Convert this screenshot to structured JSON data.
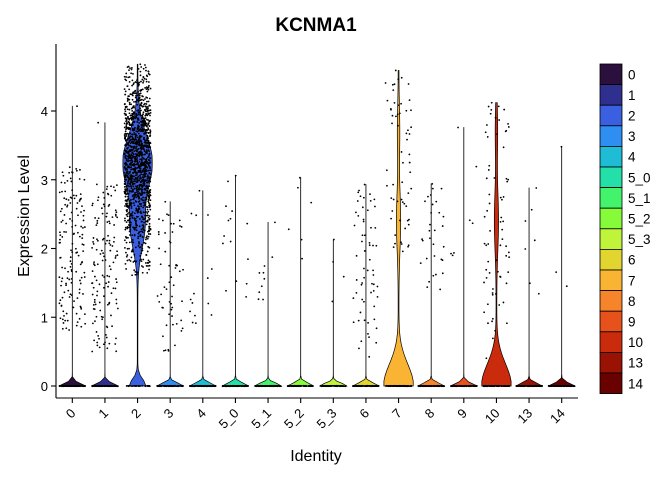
{
  "chart_data": {
    "type": "violin",
    "title": "KCNMA1",
    "xlabel": "Identity",
    "ylabel": "Expression Level",
    "ylim": [
      0,
      4.72
    ],
    "yticks": [
      0,
      1,
      2,
      3,
      4
    ],
    "legend_position": "right",
    "categories": [
      "0",
      "1",
      "2",
      "3",
      "4",
      "5_0",
      "5_1",
      "5_2",
      "5_3",
      "6",
      "7",
      "8",
      "9",
      "10",
      "13",
      "14"
    ],
    "colors": [
      "#2b0f3c",
      "#2e2f8e",
      "#3a5fe0",
      "#2f8ef2",
      "#1fbcd6",
      "#22e0a8",
      "#42f36b",
      "#86fb3a",
      "#bff43a",
      "#e2d52f",
      "#fab434",
      "#f6842b",
      "#e7511c",
      "#c92b0c",
      "#991203",
      "#6a0101"
    ],
    "series": [
      {
        "name": "0",
        "max": 4.07,
        "zero_fraction": 0.96,
        "positive_cells": 150,
        "positive_range": [
          0.8,
          3.2
        ]
      },
      {
        "name": "1",
        "max": 3.83,
        "zero_fraction": 0.96,
        "positive_cells": 140,
        "positive_range": [
          0.5,
          3.0
        ]
      },
      {
        "name": "2",
        "max": 4.68,
        "zero_fraction": 0.05,
        "positive_cells": 1400,
        "positive_range": [
          1.6,
          4.6
        ]
      },
      {
        "name": "3",
        "max": 2.68,
        "zero_fraction": 0.97,
        "positive_cells": 55,
        "positive_range": [
          0.5,
          2.6
        ]
      },
      {
        "name": "4",
        "max": 2.84,
        "zero_fraction": 0.99,
        "positive_cells": 14,
        "positive_range": [
          0.8,
          2.6
        ]
      },
      {
        "name": "5_0",
        "max": 3.06,
        "zero_fraction": 0.99,
        "positive_cells": 14,
        "positive_range": [
          1.2,
          3.0
        ]
      },
      {
        "name": "5_1",
        "max": 2.38,
        "zero_fraction": 0.99,
        "positive_cells": 9,
        "positive_range": [
          1.2,
          2.0
        ]
      },
      {
        "name": "5_2",
        "max": 3.03,
        "zero_fraction": 0.99,
        "positive_cells": 5,
        "positive_range": [
          1.5,
          3.0
        ]
      },
      {
        "name": "5_3",
        "max": 2.13,
        "zero_fraction": 0.99,
        "positive_cells": 3,
        "positive_range": [
          1.2,
          2.1
        ]
      },
      {
        "name": "6",
        "max": 2.93,
        "zero_fraction": 0.95,
        "positive_cells": 60,
        "positive_range": [
          0.4,
          2.9
        ]
      },
      {
        "name": "7",
        "max": 4.59,
        "zero_fraction": 0.72,
        "positive_cells": 60,
        "positive_range": [
          1.9,
          4.5
        ]
      },
      {
        "name": "8",
        "max": 2.94,
        "zero_fraction": 0.98,
        "positive_cells": 30,
        "positive_range": [
          1.3,
          2.9
        ]
      },
      {
        "name": "9",
        "max": 3.76,
        "zero_fraction": 0.99,
        "positive_cells": 6,
        "positive_range": [
          1.9,
          3.7
        ]
      },
      {
        "name": "10",
        "max": 4.12,
        "zero_fraction": 0.72,
        "positive_cells": 70,
        "positive_range": [
          0.4,
          4.1
        ]
      },
      {
        "name": "13",
        "max": 2.88,
        "zero_fraction": 0.99,
        "positive_cells": 6,
        "positive_range": [
          1.2,
          2.9
        ]
      },
      {
        "name": "14",
        "max": 3.48,
        "zero_fraction": 0.99,
        "positive_cells": 2,
        "positive_range": [
          1.4,
          3.5
        ]
      }
    ]
  }
}
